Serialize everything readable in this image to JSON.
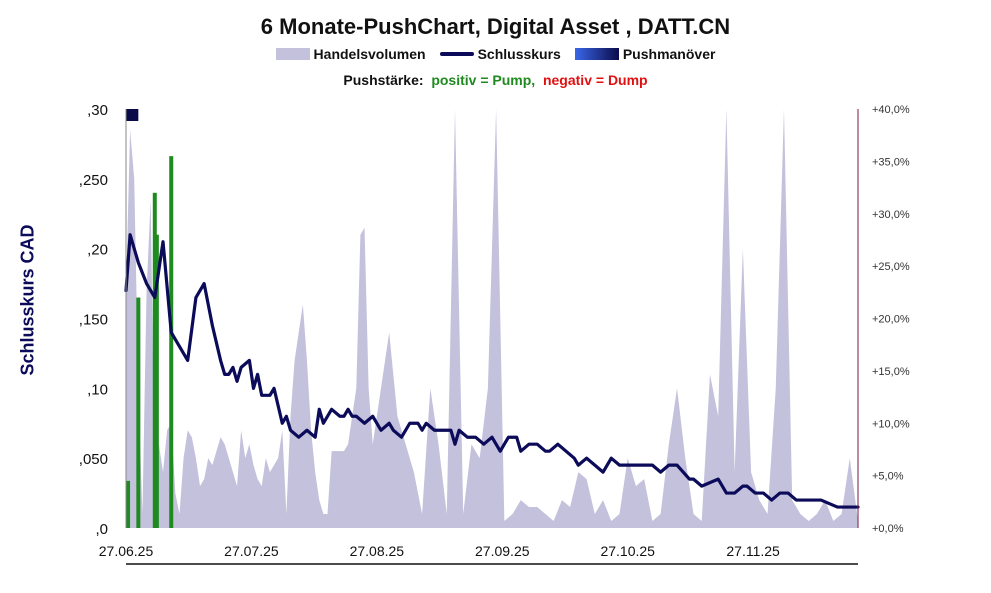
{
  "title": "6 Monate-PushChart, Digital Asset , DATT.CN",
  "legend": {
    "volume": "Handelsvolumen",
    "close": "Schlusskurs",
    "push": "Pushmanöver"
  },
  "note": {
    "prefix": "Pushstärke:",
    "positive": "positiv = Pump,",
    "negative": "negativ = Dump"
  },
  "colors": {
    "volume": "#c3c1dc",
    "close": "#0b0b5a",
    "pump": "#1f8a1f",
    "dump": "#e01010",
    "right_axis": "#7a1a4a"
  },
  "chart_data": {
    "type": "line",
    "ylabel": "Schlusskurs CAD",
    "left_axis": {
      "min": 0,
      "max": 0.3,
      "ticks": [
        ",0",
        ",050",
        ",10",
        ",150",
        ",20",
        ",250",
        ",30"
      ]
    },
    "right_axis": {
      "min": 0,
      "max": 40,
      "ticks": [
        "+0,0%",
        "+5,0%",
        "+10,0%",
        "+15,0%",
        "+20,0%",
        "+25,0%",
        "+30,0%",
        "+35,0%",
        "+40,0%"
      ]
    },
    "x_tick_labels": [
      "27.06.25",
      "27.07.25",
      "27.08.25",
      "27.09.25",
      "27.10.25",
      "27.11.25"
    ],
    "x_range_days": [
      0,
      178
    ],
    "close_series": {
      "name": "Schlusskurs",
      "x": [
        0,
        1,
        3,
        5,
        7,
        9,
        11,
        12,
        13,
        14,
        15,
        17,
        19,
        20,
        21,
        23,
        24,
        25,
        26,
        27,
        28,
        30,
        31,
        32,
        33,
        35,
        36,
        38,
        39,
        40,
        42,
        44,
        46,
        47,
        48,
        50,
        52,
        53,
        54,
        55,
        56,
        58,
        60,
        62,
        64,
        65,
        67,
        69,
        71,
        72,
        73,
        75,
        77,
        79,
        80,
        81,
        83,
        85,
        87,
        89,
        91,
        93,
        95,
        96,
        98,
        100,
        102,
        103,
        105,
        107,
        109,
        110,
        112,
        114,
        116,
        118,
        120,
        124,
        128,
        130,
        132,
        134,
        137,
        138,
        140,
        144,
        146,
        148,
        150,
        151,
        153,
        155,
        157,
        159,
        161,
        163,
        165,
        169,
        173,
        178
      ],
      "values": [
        0.17,
        0.21,
        0.19,
        0.175,
        0.165,
        0.205,
        0.14,
        0.135,
        0.13,
        0.125,
        0.12,
        0.165,
        0.175,
        0.16,
        0.145,
        0.12,
        0.11,
        0.11,
        0.115,
        0.105,
        0.115,
        0.12,
        0.1,
        0.11,
        0.095,
        0.095,
        0.1,
        0.075,
        0.08,
        0.07,
        0.065,
        0.07,
        0.065,
        0.085,
        0.075,
        0.085,
        0.08,
        0.08,
        0.085,
        0.08,
        0.08,
        0.075,
        0.08,
        0.07,
        0.075,
        0.07,
        0.065,
        0.075,
        0.075,
        0.07,
        0.075,
        0.07,
        0.07,
        0.07,
        0.06,
        0.07,
        0.065,
        0.065,
        0.06,
        0.065,
        0.055,
        0.065,
        0.065,
        0.055,
        0.06,
        0.06,
        0.055,
        0.055,
        0.06,
        0.055,
        0.05,
        0.045,
        0.05,
        0.045,
        0.04,
        0.05,
        0.045,
        0.045,
        0.045,
        0.04,
        0.045,
        0.045,
        0.035,
        0.035,
        0.03,
        0.035,
        0.025,
        0.025,
        0.03,
        0.03,
        0.025,
        0.025,
        0.02,
        0.025,
        0.025,
        0.02,
        0.02,
        0.02,
        0.015,
        0.015
      ]
    },
    "volume_series": {
      "name": "Handelsvolumen",
      "x": [
        0,
        1,
        2,
        3,
        4,
        5,
        6,
        7,
        8,
        9,
        10,
        11,
        12,
        13,
        14,
        15,
        16,
        17,
        18,
        19,
        20,
        21,
        22,
        23,
        24,
        25,
        26,
        27,
        28,
        29,
        30,
        31,
        32,
        33,
        34,
        35,
        36,
        37,
        38,
        39,
        40,
        41,
        42,
        43,
        44,
        45,
        46,
        47,
        48,
        49,
        50,
        51,
        52,
        53,
        54,
        55,
        56,
        57,
        58,
        59,
        60,
        62,
        64,
        66,
        68,
        70,
        72,
        74,
        76,
        78,
        80,
        82,
        84,
        86,
        88,
        90,
        92,
        94,
        96,
        98,
        100,
        102,
        104,
        106,
        108,
        110,
        112,
        114,
        116,
        118,
        120,
        122,
        124,
        126,
        128,
        130,
        132,
        134,
        136,
        138,
        140,
        142,
        144,
        146,
        148,
        150,
        152,
        154,
        156,
        158,
        160,
        162,
        164,
        166,
        168,
        170,
        172,
        174,
        176,
        178
      ],
      "values": [
        0.17,
        0.285,
        0.25,
        0.1,
        0.01,
        0.17,
        0.235,
        0.03,
        0.06,
        0.04,
        0.07,
        0.075,
        0.025,
        0.01,
        0.05,
        0.07,
        0.065,
        0.05,
        0.03,
        0.035,
        0.05,
        0.045,
        0.055,
        0.065,
        0.06,
        0.05,
        0.04,
        0.03,
        0.07,
        0.05,
        0.06,
        0.045,
        0.035,
        0.03,
        0.05,
        0.04,
        0.045,
        0.05,
        0.07,
        0.01,
        0.08,
        0.12,
        0.14,
        0.16,
        0.12,
        0.07,
        0.04,
        0.02,
        0.01,
        0.01,
        0.055,
        0.055,
        0.055,
        0.055,
        0.06,
        0.08,
        0.1,
        0.21,
        0.215,
        0.1,
        0.06,
        0.1,
        0.14,
        0.08,
        0.06,
        0.04,
        0.01,
        0.1,
        0.06,
        0.01,
        0.3,
        0.01,
        0.06,
        0.05,
        0.1,
        0.3,
        0.005,
        0.01,
        0.02,
        0.015,
        0.015,
        0.01,
        0.005,
        0.02,
        0.015,
        0.04,
        0.035,
        0.01,
        0.02,
        0.005,
        0.01,
        0.05,
        0.03,
        0.035,
        0.005,
        0.01,
        0.06,
        0.1,
        0.05,
        0.01,
        0.005,
        0.11,
        0.08,
        0.3,
        0.04,
        0.2,
        0.04,
        0.02,
        0.01,
        0.1,
        0.3,
        0.02,
        0.01,
        0.005,
        0.01,
        0.02,
        0.005,
        0.01,
        0.05,
        0.005
      ],
      "scaled_to_left_axis": true
    },
    "push_strength_bars": {
      "name": "Pushstärke",
      "unit": "%",
      "x": [
        0.5,
        3,
        7,
        7.5,
        11
      ],
      "values": [
        4.5,
        22,
        32,
        28,
        35.5
      ],
      "sign": [
        "positive",
        "positive",
        "positive",
        "positive",
        "positive"
      ]
    },
    "push_markers": {
      "name": "Pushmanöver",
      "x_start": [
        0
      ],
      "x_end": [
        3
      ]
    }
  }
}
